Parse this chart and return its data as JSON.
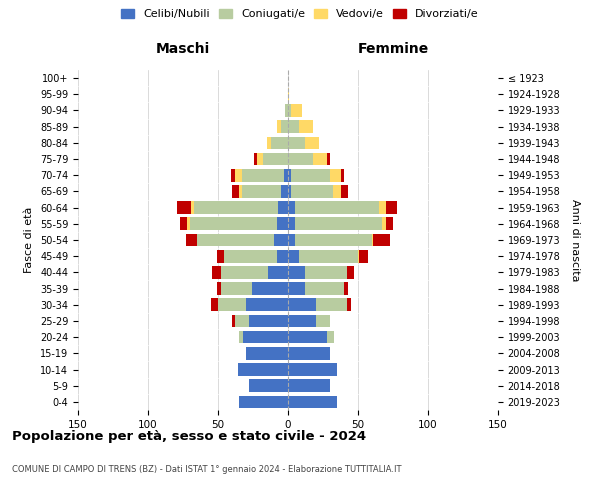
{
  "age_groups": [
    "0-4",
    "5-9",
    "10-14",
    "15-19",
    "20-24",
    "25-29",
    "30-34",
    "35-39",
    "40-44",
    "45-49",
    "50-54",
    "55-59",
    "60-64",
    "65-69",
    "70-74",
    "75-79",
    "80-84",
    "85-89",
    "90-94",
    "95-99",
    "100+"
  ],
  "birth_years": [
    "2019-2023",
    "2014-2018",
    "2009-2013",
    "2004-2008",
    "1999-2003",
    "1994-1998",
    "1989-1993",
    "1984-1988",
    "1979-1983",
    "1974-1978",
    "1969-1973",
    "1964-1968",
    "1959-1963",
    "1954-1958",
    "1949-1953",
    "1944-1948",
    "1939-1943",
    "1934-1938",
    "1929-1933",
    "1924-1928",
    "≤ 1923"
  ],
  "male": {
    "celibi": [
      35,
      28,
      36,
      30,
      32,
      28,
      30,
      26,
      14,
      8,
      10,
      8,
      7,
      5,
      3,
      0,
      0,
      0,
      0,
      0,
      0
    ],
    "coniugati": [
      0,
      0,
      0,
      0,
      3,
      10,
      20,
      22,
      34,
      38,
      55,
      62,
      60,
      28,
      30,
      18,
      12,
      5,
      2,
      0,
      0
    ],
    "vedovi": [
      0,
      0,
      0,
      0,
      0,
      0,
      0,
      0,
      0,
      0,
      0,
      2,
      2,
      2,
      5,
      4,
      3,
      3,
      0,
      0,
      0
    ],
    "divorziati": [
      0,
      0,
      0,
      0,
      0,
      2,
      5,
      3,
      6,
      5,
      8,
      5,
      10,
      5,
      3,
      2,
      0,
      0,
      0,
      0,
      0
    ]
  },
  "female": {
    "nubili": [
      35,
      30,
      35,
      30,
      28,
      20,
      20,
      12,
      12,
      8,
      5,
      5,
      5,
      2,
      2,
      0,
      0,
      0,
      0,
      0,
      0
    ],
    "coniugate": [
      0,
      0,
      0,
      0,
      5,
      10,
      22,
      28,
      30,
      42,
      55,
      62,
      60,
      30,
      28,
      18,
      12,
      8,
      2,
      0,
      0
    ],
    "vedove": [
      0,
      0,
      0,
      0,
      0,
      0,
      0,
      0,
      0,
      1,
      1,
      3,
      5,
      6,
      8,
      10,
      10,
      10,
      8,
      1,
      0
    ],
    "divorziate": [
      0,
      0,
      0,
      0,
      0,
      0,
      3,
      3,
      5,
      6,
      12,
      5,
      8,
      5,
      2,
      2,
      0,
      0,
      0,
      0,
      0
    ]
  },
  "colors": {
    "celibi": "#4472c4",
    "coniugati": "#b8cca0",
    "vedovi": "#ffd966",
    "divorziati": "#c00000"
  },
  "title": "Popolazione per età, sesso e stato civile - 2024",
  "subtitle": "COMUNE DI CAMPO DI TRENS (BZ) - Dati ISTAT 1° gennaio 2024 - Elaborazione TUTTITALIA.IT",
  "xlabel_left": "Maschi",
  "xlabel_right": "Femmine",
  "ylabel_left": "Fasce di età",
  "ylabel_right": "Anni di nascita",
  "xlim": 150,
  "legend_labels": [
    "Celibi/Nubili",
    "Coniugati/e",
    "Vedovi/e",
    "Divorziati/e"
  ],
  "background_color": "#ffffff",
  "grid_color": "#cccccc"
}
